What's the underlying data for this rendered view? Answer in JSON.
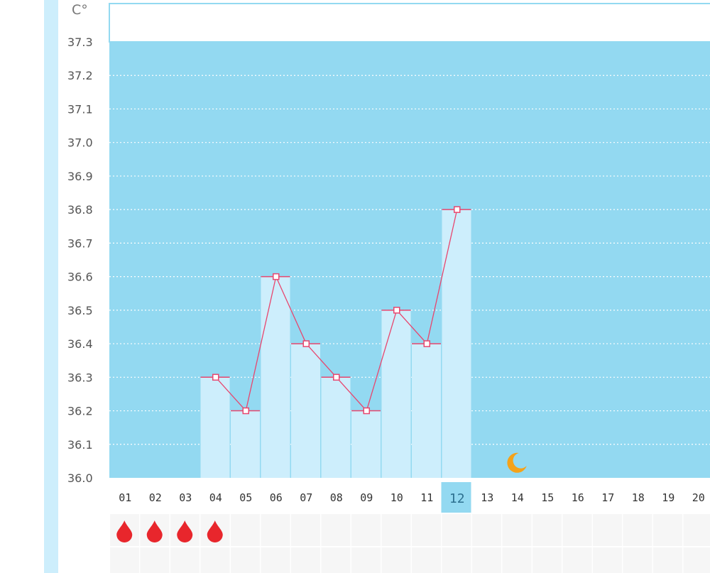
{
  "chart_data": {
    "type": "bar",
    "unit_label": "C°",
    "y_ticks": [
      "37.3",
      "37.2",
      "37.1",
      "37.0",
      "36.9",
      "36.8",
      "36.7",
      "36.6",
      "36.5",
      "36.4",
      "36.3",
      "36.2",
      "36.1",
      "36.0"
    ],
    "ylim": [
      36.0,
      37.3
    ],
    "categories": [
      "01",
      "02",
      "03",
      "04",
      "05",
      "06",
      "07",
      "08",
      "09",
      "10",
      "11",
      "12",
      "13",
      "14",
      "15",
      "16",
      "17",
      "18",
      "19",
      "20"
    ],
    "series": [
      {
        "values": [
          null,
          null,
          null,
          36.3,
          36.2,
          36.6,
          36.4,
          36.3,
          36.2,
          36.5,
          36.4,
          36.8,
          null,
          null,
          null,
          null,
          null,
          null,
          null,
          null
        ]
      }
    ],
    "line_overlay": true,
    "selected_day": "12",
    "period_days": [
      "01",
      "02",
      "03",
      "04"
    ],
    "moon_icon_day": "14",
    "grid": true,
    "colors": {
      "plot_background": "#93d9f1",
      "bar": "#cdeefc",
      "line": "#e8466e",
      "period_drop": "#e8262c",
      "moon": "#f4a21a",
      "selected_day_highlight": "#93d9f1"
    }
  }
}
